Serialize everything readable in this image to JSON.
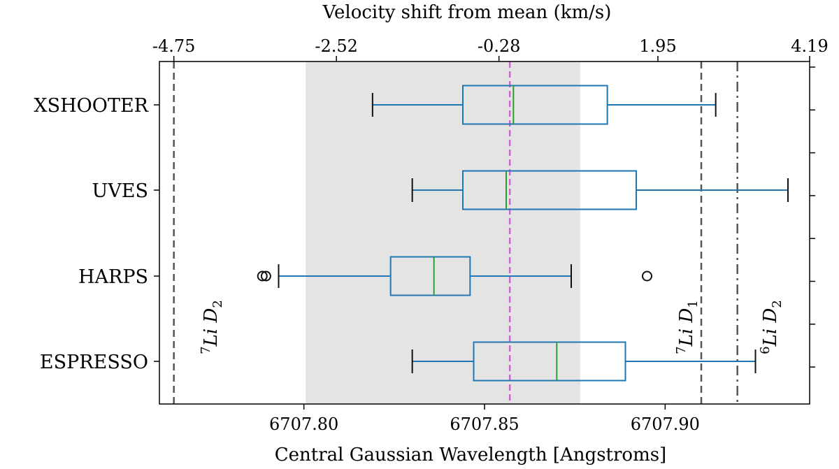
{
  "chart_data": {
    "type": "boxplot",
    "orientation": "horizontal",
    "title": "",
    "xlabel": "Central Gaussian Wavelength [Angstroms]",
    "top_xlabel": "Velocity shift from mean (km/s)",
    "xlim": [
      6707.76,
      6707.94
    ],
    "xticks": [
      6707.8,
      6707.85,
      6707.9
    ],
    "xtick_labels": [
      "6707.80",
      "6707.85",
      "6707.90"
    ],
    "top_xticks": [
      6707.764,
      6707.809,
      6707.854,
      6707.898,
      6707.943
    ],
    "top_xtick_labels": [
      "-4.75",
      "-2.52",
      "-0.28",
      "1.95",
      "4.19"
    ],
    "categories": [
      "XSHOOTER",
      "UVES",
      "HARPS",
      "ESPRESSO"
    ],
    "boxes": [
      {
        "name": "XSHOOTER",
        "whisker_low": 6707.819,
        "q1": 6707.844,
        "median": 6707.858,
        "q3": 6707.884,
        "whisker_high": 6707.914,
        "outliers": []
      },
      {
        "name": "UVES",
        "whisker_low": 6707.83,
        "q1": 6707.844,
        "median": 6707.856,
        "q3": 6707.892,
        "whisker_high": 6707.934,
        "outliers": []
      },
      {
        "name": "HARPS",
        "whisker_low": 6707.793,
        "q1": 6707.824,
        "median": 6707.836,
        "q3": 6707.846,
        "whisker_high": 6707.874,
        "outliers": [
          6707.7885,
          6707.7895,
          6707.895
        ]
      },
      {
        "name": "ESPRESSO",
        "whisker_low": 6707.83,
        "q1": 6707.847,
        "median": 6707.87,
        "q3": 6707.889,
        "whisker_high": 6707.925,
        "outliers": []
      }
    ],
    "shaded_region": [
      6707.8005,
      6707.8765
    ],
    "mean_line": 6707.857,
    "reference_lines": [
      {
        "label_base": "7",
        "label_text": "Li D",
        "label_sub": "2",
        "x": 6707.764,
        "style": "dashed"
      },
      {
        "label_base": "7",
        "label_text": "Li D",
        "label_sub": "1",
        "x": 6707.91,
        "style": "dashed"
      },
      {
        "label_base": "6",
        "label_text": "Li D",
        "label_sub": "2",
        "x": 6707.92,
        "style": "dashdot"
      }
    ],
    "colors": {
      "box": "#1f77b4",
      "median": "#2ca02c",
      "mean_line": "#cc66cc",
      "reference": "#555555",
      "shade": "#e4e4e4"
    }
  }
}
